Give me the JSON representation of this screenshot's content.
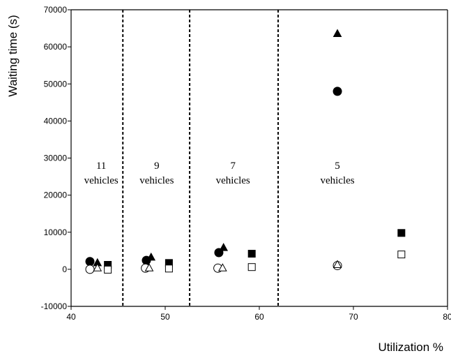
{
  "chart_data": {
    "type": "scatter",
    "title": "",
    "xlabel": "Utilization %",
    "ylabel": "Waiting time (s)",
    "xlim": [
      40,
      80
    ],
    "ylim": [
      -10000,
      70000
    ],
    "x_ticks": [
      40,
      50,
      60,
      70,
      80
    ],
    "y_ticks": [
      -10000,
      0,
      10000,
      20000,
      30000,
      40000,
      50000,
      60000,
      70000
    ],
    "x_tick_labels": [
      "40",
      "50",
      "60",
      "70",
      "80"
    ],
    "y_tick_labels": [
      "-10000",
      "0",
      "10000",
      "20000",
      "30000",
      "40000",
      "50000",
      "60000",
      "70000"
    ],
    "grid": false,
    "legend": "none",
    "separators": [
      45.5,
      52.6,
      62
    ],
    "groups": [
      {
        "number": "11",
        "unit": "vehicles",
        "x": 43.2
      },
      {
        "number": "9",
        "unit": "vehicles",
        "x": 49.1
      },
      {
        "number": "7",
        "unit": "vehicles",
        "x": 57.2
      },
      {
        "number": "5",
        "unit": "vehicles",
        "x": 68.3
      }
    ],
    "series": [
      {
        "marker": "circle-filled",
        "points": [
          [
            42,
            2100
          ],
          [
            48,
            2400
          ],
          [
            55.7,
            4500
          ],
          [
            68.3,
            48000
          ]
        ]
      },
      {
        "marker": "triangle-filled",
        "points": [
          [
            42.8,
            1700
          ],
          [
            48.5,
            3200
          ],
          [
            56.2,
            5800
          ],
          [
            68.3,
            63500
          ]
        ]
      },
      {
        "marker": "square-filled",
        "points": [
          [
            43.9,
            1200
          ],
          [
            50.4,
            1700
          ],
          [
            59.2,
            4200
          ],
          [
            75.1,
            9800
          ]
        ]
      },
      {
        "marker": "circle-open",
        "points": [
          [
            42,
            0
          ],
          [
            47.9,
            300
          ],
          [
            55.6,
            300
          ],
          [
            68.3,
            1000
          ]
        ]
      },
      {
        "marker": "triangle-open",
        "points": [
          [
            42.8,
            300
          ],
          [
            48.3,
            300
          ],
          [
            56.1,
            300
          ],
          [
            68.3,
            1200
          ]
        ]
      },
      {
        "marker": "square-open",
        "points": [
          [
            43.9,
            -100
          ],
          [
            50.4,
            200
          ],
          [
            59.2,
            600
          ],
          [
            75.1,
            4000
          ]
        ]
      }
    ]
  }
}
